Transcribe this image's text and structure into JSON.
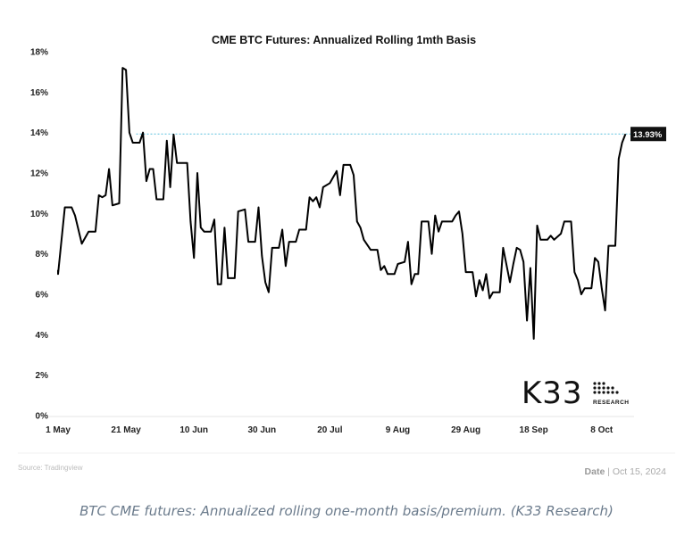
{
  "chart_data": {
    "type": "line",
    "title": "CME BTC Futures: Annualized Rolling 1mth Basis",
    "y_ticks": [
      "0%",
      "2%",
      "4%",
      "6%",
      "8%",
      "10%",
      "12%",
      "14%",
      "16%",
      "18%"
    ],
    "x_ticks": [
      "1 May",
      "21 May",
      "10 Jun",
      "30 Jun",
      "20 Jul",
      "9 Aug",
      "29 Aug",
      "18 Sep",
      "8 Oct"
    ],
    "ylim": [
      0,
      18
    ],
    "x_range": [
      "2024-05-01",
      "2024-10-17"
    ],
    "reference_line": {
      "value": 13.93,
      "style": "dashed",
      "color": "#5bc0de"
    },
    "last_value_label": "13.93%",
    "series": [
      {
        "color": "#000000",
        "points": [
          [
            "2024-05-01",
            7.2
          ],
          [
            "2024-05-01",
            7.0
          ],
          [
            "2024-05-03",
            10.3
          ],
          [
            "2024-05-05",
            10.3
          ],
          [
            "2024-05-06",
            9.9
          ],
          [
            "2024-05-08",
            8.5
          ],
          [
            "2024-05-10",
            9.1
          ],
          [
            "2024-05-12",
            9.1
          ],
          [
            "2024-05-13",
            10.9
          ],
          [
            "2024-05-14",
            10.8
          ],
          [
            "2024-05-15",
            10.9
          ],
          [
            "2024-05-16",
            12.2
          ],
          [
            "2024-05-17",
            10.4
          ],
          [
            "2024-05-19",
            10.5
          ],
          [
            "2024-05-20",
            17.2
          ],
          [
            "2024-05-21",
            17.1
          ],
          [
            "2024-05-22",
            14.0
          ],
          [
            "2024-05-23",
            13.5
          ],
          [
            "2024-05-25",
            13.5
          ],
          [
            "2024-05-26",
            14.0
          ],
          [
            "2024-05-27",
            11.6
          ],
          [
            "2024-05-28",
            12.2
          ],
          [
            "2024-05-29",
            12.2
          ],
          [
            "2024-05-30",
            10.7
          ],
          [
            "2024-06-01",
            10.7
          ],
          [
            "2024-06-02",
            13.6
          ],
          [
            "2024-06-03",
            11.3
          ],
          [
            "2024-06-04",
            13.9
          ],
          [
            "2024-06-05",
            12.5
          ],
          [
            "2024-06-08",
            12.5
          ],
          [
            "2024-06-09",
            9.6
          ],
          [
            "2024-06-10",
            7.8
          ],
          [
            "2024-06-11",
            12.0
          ],
          [
            "2024-06-12",
            9.3
          ],
          [
            "2024-06-13",
            9.1
          ],
          [
            "2024-06-15",
            9.1
          ],
          [
            "2024-06-16",
            9.7
          ],
          [
            "2024-06-17",
            6.5
          ],
          [
            "2024-06-18",
            6.5
          ],
          [
            "2024-06-19",
            9.3
          ],
          [
            "2024-06-20",
            6.8
          ],
          [
            "2024-06-22",
            6.8
          ],
          [
            "2024-06-23",
            10.1
          ],
          [
            "2024-06-25",
            10.2
          ],
          [
            "2024-06-26",
            8.6
          ],
          [
            "2024-06-28",
            8.6
          ],
          [
            "2024-06-29",
            10.3
          ],
          [
            "2024-06-30",
            7.9
          ],
          [
            "2024-07-01",
            6.6
          ],
          [
            "2024-07-02",
            6.1
          ],
          [
            "2024-07-03",
            8.3
          ],
          [
            "2024-07-05",
            8.3
          ],
          [
            "2024-07-06",
            9.2
          ],
          [
            "2024-07-07",
            7.4
          ],
          [
            "2024-07-08",
            8.6
          ],
          [
            "2024-07-10",
            8.6
          ],
          [
            "2024-07-11",
            9.2
          ],
          [
            "2024-07-13",
            9.2
          ],
          [
            "2024-07-14",
            10.8
          ],
          [
            "2024-07-15",
            10.6
          ],
          [
            "2024-07-16",
            10.8
          ],
          [
            "2024-07-17",
            10.3
          ],
          [
            "2024-07-18",
            11.3
          ],
          [
            "2024-07-20",
            11.5
          ],
          [
            "2024-07-21",
            11.8
          ],
          [
            "2024-07-22",
            12.1
          ],
          [
            "2024-07-23",
            10.9
          ],
          [
            "2024-07-24",
            12.4
          ],
          [
            "2024-07-26",
            12.4
          ],
          [
            "2024-07-27",
            11.9
          ],
          [
            "2024-07-28",
            9.6
          ],
          [
            "2024-07-29",
            9.3
          ],
          [
            "2024-07-30",
            8.7
          ],
          [
            "2024-08-01",
            8.2
          ],
          [
            "2024-08-03",
            8.2
          ],
          [
            "2024-08-04",
            7.2
          ],
          [
            "2024-08-05",
            7.4
          ],
          [
            "2024-08-06",
            7.0
          ],
          [
            "2024-08-08",
            7.0
          ],
          [
            "2024-08-09",
            7.5
          ],
          [
            "2024-08-11",
            7.6
          ],
          [
            "2024-08-12",
            8.6
          ],
          [
            "2024-08-13",
            6.5
          ],
          [
            "2024-08-14",
            7.0
          ],
          [
            "2024-08-15",
            7.0
          ],
          [
            "2024-08-16",
            9.6
          ],
          [
            "2024-08-18",
            9.6
          ],
          [
            "2024-08-19",
            8.0
          ],
          [
            "2024-08-20",
            9.9
          ],
          [
            "2024-08-21",
            9.1
          ],
          [
            "2024-08-22",
            9.6
          ],
          [
            "2024-08-25",
            9.6
          ],
          [
            "2024-08-26",
            9.9
          ],
          [
            "2024-08-27",
            10.1
          ],
          [
            "2024-08-28",
            9.0
          ],
          [
            "2024-08-29",
            7.1
          ],
          [
            "2024-08-31",
            7.1
          ],
          [
            "2024-09-01",
            5.9
          ],
          [
            "2024-09-02",
            6.7
          ],
          [
            "2024-09-03",
            6.2
          ],
          [
            "2024-09-04",
            7.0
          ],
          [
            "2024-09-05",
            5.8
          ],
          [
            "2024-09-06",
            6.1
          ],
          [
            "2024-09-08",
            6.1
          ],
          [
            "2024-09-09",
            8.3
          ],
          [
            "2024-09-11",
            6.6
          ],
          [
            "2024-09-12",
            7.5
          ],
          [
            "2024-09-13",
            8.3
          ],
          [
            "2024-09-14",
            8.2
          ],
          [
            "2024-09-15",
            7.6
          ],
          [
            "2024-09-16",
            4.7
          ],
          [
            "2024-09-17",
            7.3
          ],
          [
            "2024-09-18",
            3.8
          ],
          [
            "2024-09-19",
            9.4
          ],
          [
            "2024-09-20",
            8.7
          ],
          [
            "2024-09-22",
            8.7
          ],
          [
            "2024-09-23",
            8.9
          ],
          [
            "2024-09-24",
            8.7
          ],
          [
            "2024-09-26",
            9.0
          ],
          [
            "2024-09-27",
            9.6
          ],
          [
            "2024-09-29",
            9.6
          ],
          [
            "2024-09-30",
            7.1
          ],
          [
            "2024-10-01",
            6.7
          ],
          [
            "2024-10-02",
            6.0
          ],
          [
            "2024-10-03",
            6.3
          ],
          [
            "2024-10-05",
            6.3
          ],
          [
            "2024-10-06",
            7.8
          ],
          [
            "2024-10-07",
            7.6
          ],
          [
            "2024-10-08",
            6.3
          ],
          [
            "2024-10-09",
            5.2
          ],
          [
            "2024-10-10",
            8.4
          ],
          [
            "2024-10-12",
            8.4
          ],
          [
            "2024-10-13",
            12.7
          ],
          [
            "2024-10-14",
            13.5
          ],
          [
            "2024-10-15",
            13.93
          ]
        ]
      }
    ]
  },
  "logo": {
    "name": "K33",
    "subtitle": "RESEARCH"
  },
  "source_text": "Source: Tradingview",
  "date_label": "Date",
  "date_value": "| Oct 15, 2024",
  "caption": "BTC CME futures: Annualized rolling one-month basis/premium. (K33 Research)"
}
